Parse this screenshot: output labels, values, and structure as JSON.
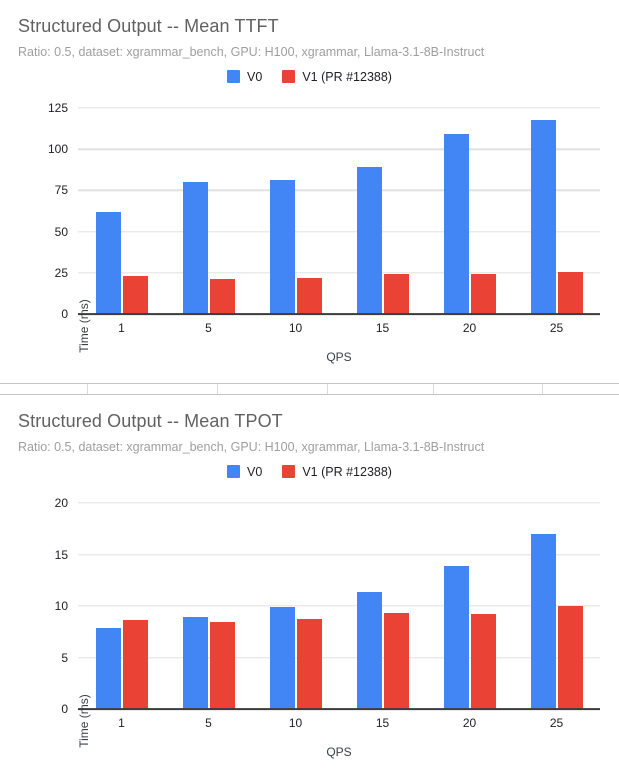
{
  "chart_data": [
    {
      "type": "bar",
      "title": "Structured Output -- Mean TTFT",
      "subtitle": "Ratio: 0.5, dataset: xgrammar_bench, GPU: H100, xgrammar, Llama-3.1-8B-Instruct",
      "categories": [
        "1",
        "5",
        "10",
        "15",
        "20",
        "25"
      ],
      "series": [
        {
          "name": "V0",
          "color": "#4285f4",
          "values": [
            62,
            80,
            81.5,
            89,
            109,
            117.5
          ]
        },
        {
          "name": "V1 (PR #12388)",
          "color": "#ea4335",
          "values": [
            23,
            21.5,
            22,
            24,
            24,
            25.5
          ]
        }
      ],
      "xlabel": "QPS",
      "ylabel": "Time (ms)",
      "ylim": [
        0,
        125
      ],
      "yticks": [
        0,
        25,
        50,
        75,
        100,
        125
      ],
      "grid": true,
      "legend_position": "top"
    },
    {
      "type": "bar",
      "title": "Structured Output -- Mean TPOT",
      "subtitle": "Ratio: 0.5, dataset: xgrammar_bench, GPU: H100, xgrammar, Llama-3.1-8B-Instruct",
      "categories": [
        "1",
        "5",
        "10",
        "15",
        "20",
        "25"
      ],
      "series": [
        {
          "name": "V0",
          "color": "#4285f4",
          "values": [
            7.9,
            8.9,
            9.9,
            11.4,
            13.9,
            17
          ]
        },
        {
          "name": "V1 (PR #12388)",
          "color": "#ea4335",
          "values": [
            8.6,
            8.4,
            8.7,
            9.3,
            9.2,
            10
          ]
        }
      ],
      "xlabel": "QPS",
      "ylabel": "Time (ms)",
      "ylim": [
        0,
        20
      ],
      "yticks": [
        0,
        5,
        10,
        15,
        20
      ],
      "grid": true,
      "legend_position": "top"
    }
  ]
}
